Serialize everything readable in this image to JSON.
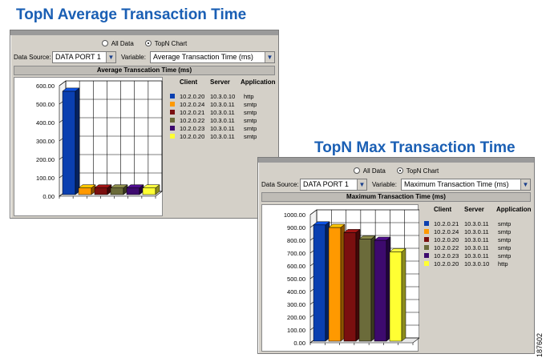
{
  "titles": {
    "avg": "TopN Average Transaction Time",
    "max": "TopN Max Transaction Time"
  },
  "figure_id": "187602",
  "radio_options": {
    "all": "All Data",
    "topn": "TopN Chart",
    "selected": "topn"
  },
  "controls": {
    "data_source_label": "Data Source:",
    "data_source_value": "DATA PORT 1",
    "variable_label": "Variable:"
  },
  "legend_columns": {
    "client": "Client",
    "server": "Server",
    "application": "Application"
  },
  "panels": [
    {
      "variable_value": "Average Transaction Time (ms)",
      "section_title": "Average Transcation Time (ms)",
      "rows": [
        {
          "client": "10.2.0.20",
          "server": "10.3.0.10",
          "application": "http",
          "color": "#0a3fb0"
        },
        {
          "client": "10.2.0.24",
          "server": "10.3.0.11",
          "application": "smtp",
          "color": "#ff9900"
        },
        {
          "client": "10.2.0.21",
          "server": "10.3.0.11",
          "application": "smtp",
          "color": "#7a0f0f"
        },
        {
          "client": "10.2.0.22",
          "server": "10.3.0.11",
          "application": "smtp",
          "color": "#6b6b3a"
        },
        {
          "client": "10.2.0.23",
          "server": "10.3.0.11",
          "application": "smtp",
          "color": "#3d0a6e"
        },
        {
          "client": "10.2.0.20",
          "server": "10.3.0.11",
          "application": "smtp",
          "color": "#ffff33"
        }
      ]
    },
    {
      "variable_value": "Maximum Transaction Time (ms)",
      "section_title": "Maximum Transaction Time (ms)",
      "rows": [
        {
          "client": "10.2.0.21",
          "server": "10.3.0.11",
          "application": "smtp",
          "color": "#0a3fb0"
        },
        {
          "client": "10.2.0.24",
          "server": "10.3.0.11",
          "application": "smtp",
          "color": "#ff9900"
        },
        {
          "client": "10.2.0.20",
          "server": "10.3.0.11",
          "application": "smtp",
          "color": "#7a0f0f"
        },
        {
          "client": "10.2.0.22",
          "server": "10.3.0.11",
          "application": "smtp",
          "color": "#6b6b3a"
        },
        {
          "client": "10.2.0.23",
          "server": "10.3.0.11",
          "application": "smtp",
          "color": "#3d0a6e"
        },
        {
          "client": "10.2.0.20",
          "server": "10.3.0.10",
          "application": "http",
          "color": "#ffff33"
        }
      ]
    }
  ],
  "chart_data": [
    {
      "type": "bar",
      "title": "Average Transcation Time (ms)",
      "ylim": [
        0,
        600
      ],
      "yticks": [
        "0.00",
        "100.00",
        "200.00",
        "300.00",
        "400.00",
        "500.00",
        "600.00"
      ],
      "categories": [
        "10.2.0.20",
        "10.2.0.24",
        "10.2.0.21",
        "10.2.0.22",
        "10.2.0.23",
        "10.2.0.20"
      ],
      "values": [
        570,
        45,
        45,
        45,
        45,
        45
      ],
      "colors": [
        "#0a3fb0",
        "#ff9900",
        "#7a0f0f",
        "#6b6b3a",
        "#3d0a6e",
        "#ffff33"
      ],
      "grid": true
    },
    {
      "type": "bar",
      "title": "Maximum Transaction Time (ms)",
      "ylim": [
        0,
        1000
      ],
      "yticks": [
        "0.00",
        "100.00",
        "200.00",
        "300.00",
        "400.00",
        "500.00",
        "600.00",
        "700.00",
        "800.00",
        "900.00",
        "1000.00"
      ],
      "categories": [
        "10.2.0.21",
        "10.2.0.24",
        "10.2.0.20",
        "10.2.0.22",
        "10.2.0.23",
        "10.2.0.20"
      ],
      "values": [
        920,
        900,
        860,
        810,
        800,
        710
      ],
      "colors": [
        "#0a3fb0",
        "#ff9900",
        "#7a0f0f",
        "#6b6b3a",
        "#3d0a6e",
        "#ffff33"
      ],
      "grid": true
    }
  ]
}
